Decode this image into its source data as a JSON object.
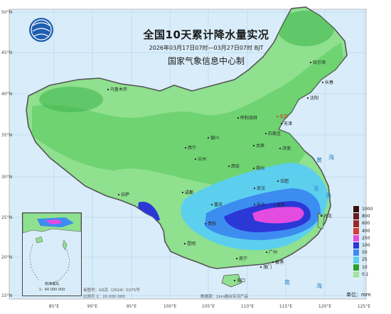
{
  "header": {
    "title": "全国10天累计降水量实况",
    "period": "2026年03月17日07时—03月27日07时 BJT",
    "org": "国家气象信息中心制"
  },
  "axes": {
    "lat_labels": [
      "50°N",
      "45°N",
      "40°N",
      "35°N",
      "30°N",
      "25°N",
      "20°N",
      "15°N"
    ],
    "lon_labels": [
      "85°E",
      "90°E",
      "95°E",
      "100°E",
      "105°E",
      "110°E",
      "115°E",
      "120°E",
      "125°E"
    ]
  },
  "cities": [
    {
      "name": "哈尔滨"
    },
    {
      "name": "长春"
    },
    {
      "name": "沈阳"
    },
    {
      "name": "乌鲁木齐"
    },
    {
      "name": "呼和浩特"
    },
    {
      "name": "北京"
    },
    {
      "name": "天津"
    },
    {
      "name": "石家庄"
    },
    {
      "name": "太原"
    },
    {
      "name": "济南"
    },
    {
      "name": "银川"
    },
    {
      "name": "西宁"
    },
    {
      "name": "兰州"
    },
    {
      "name": "西安"
    },
    {
      "name": "郑州"
    },
    {
      "name": "合肥"
    },
    {
      "name": "武汉"
    },
    {
      "name": "成都"
    },
    {
      "name": "拉萨"
    },
    {
      "name": "重庆"
    },
    {
      "name": "长沙"
    },
    {
      "name": "南昌"
    },
    {
      "name": "贵阳"
    },
    {
      "name": "昆明"
    },
    {
      "name": "南宁"
    },
    {
      "name": "广州"
    },
    {
      "name": "香港"
    },
    {
      "name": "澳门"
    },
    {
      "name": "海口"
    },
    {
      "name": "台北"
    }
  ],
  "seas": [
    {
      "name": "黄"
    },
    {
      "name": "海"
    },
    {
      "name": "东"
    },
    {
      "name": "海"
    },
    {
      "name": "南"
    },
    {
      "name": "海"
    }
  ],
  "legend": {
    "items": [
      {
        "label": "1000",
        "color": "#3a0f0f"
      },
      {
        "label": "800",
        "color": "#6b1c1c"
      },
      {
        "label": "600",
        "color": "#9a2a2a"
      },
      {
        "label": "400",
        "color": "#d63a3a"
      },
      {
        "label": "250",
        "color": "#e44be0"
      },
      {
        "label": "100",
        "color": "#2b38d6"
      },
      {
        "label": "50",
        "color": "#3d8cf0"
      },
      {
        "label": "25",
        "color": "#5ccfee"
      },
      {
        "label": "10",
        "color": "#2ca02c"
      },
      {
        "label": "0.1",
        "color": "#9fe59f"
      }
    ]
  },
  "unit_label": "单位：mm",
  "footer": {
    "approval": "审图号：GS京（2024）0275号",
    "scale": "比例尺 1：20 000 000",
    "data_source": "数据源：1km融合实况产品"
  },
  "inset": {
    "caption_title": "南海诸岛",
    "caption_scale": "1：40 000 000"
  },
  "colors": {
    "sea": "#d9ecf9",
    "land_light": "#8fe08f",
    "land_mid": "#3cb44b",
    "rain_cyan": "#5ccfee",
    "rain_blue": "#3d8cf0",
    "rain_indigo": "#2b38d6",
    "rain_magenta": "#e44be0"
  }
}
